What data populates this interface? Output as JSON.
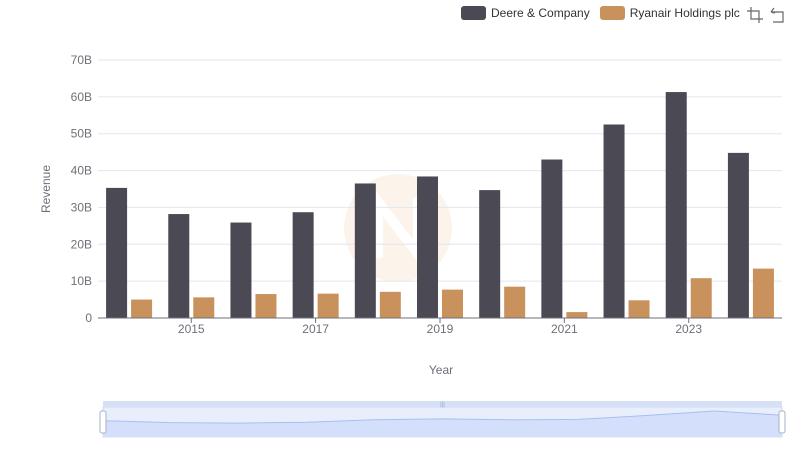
{
  "chart_data": {
    "type": "bar",
    "title": "",
    "xlabel": "Year",
    "ylabel": "Revenue",
    "categories": [
      "2014",
      "2015",
      "2016",
      "2017",
      "2018",
      "2019",
      "2020",
      "2021",
      "2022",
      "2023",
      "2024"
    ],
    "x_tick_labels": [
      "2015",
      "2017",
      "2019",
      "2021",
      "2023"
    ],
    "y_tick_labels": [
      "0",
      "10B",
      "20B",
      "30B",
      "40B",
      "50B",
      "60B",
      "70B"
    ],
    "ylim": [
      0,
      70000000000
    ],
    "grid": true,
    "legend_position": "top-right",
    "series": [
      {
        "name": "Deere & Company",
        "color": "#4a4954",
        "values": [
          35300000000,
          28200000000,
          25900000000,
          28700000000,
          36500000000,
          38400000000,
          34700000000,
          43000000000,
          52500000000,
          61300000000,
          44800000000
        ]
      },
      {
        "name": "Ryanair Holdings plc",
        "color": "#c9915c",
        "values": [
          5000000000,
          5600000000,
          6500000000,
          6600000000,
          7100000000,
          7700000000,
          8500000000,
          1600000000,
          4800000000,
          10800000000,
          13400000000
        ]
      }
    ],
    "data_zoom": {
      "start": 0,
      "end": 100
    }
  }
}
